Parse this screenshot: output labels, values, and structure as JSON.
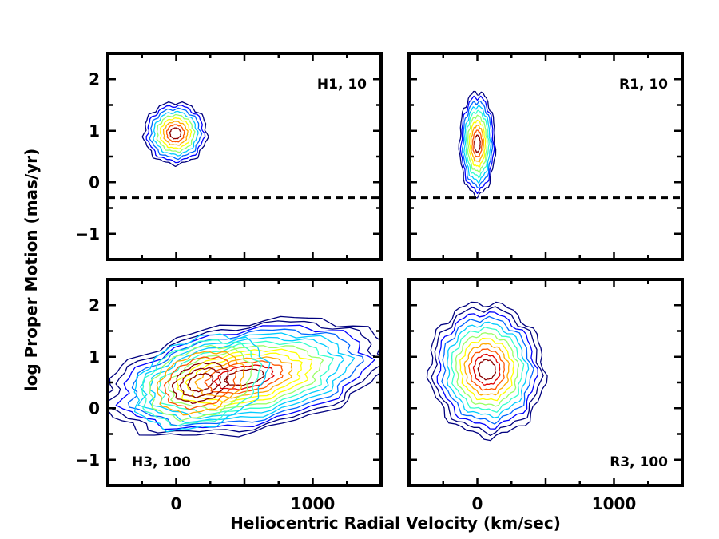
{
  "chart_data": {
    "type": "contour",
    "xlabel": "Heliocentric Radial Velocity (km/sec)",
    "ylabel": "log Proper Motion (mas/yr)",
    "xlim": [
      -500,
      1500
    ],
    "ylim": [
      -1.5,
      2.5
    ],
    "x_ticks": [
      0,
      1000
    ],
    "y_ticks": [
      2,
      1,
      0,
      -1
    ],
    "x_tick_labels": [
      "0",
      "1000"
    ],
    "y_tick_labels": [
      "2",
      "1",
      "0",
      "−1"
    ],
    "reference_line_y": -0.3,
    "panels": [
      {
        "id": "H1",
        "label": "H1, 10",
        "row": 0,
        "col": 0,
        "label_pos": "top-right",
        "dashed_line": true,
        "blobs": [
          {
            "cx": -5,
            "cy": 0.95,
            "sx": 230,
            "sy": 0.6,
            "rot": 0,
            "levels": 9
          }
        ]
      },
      {
        "id": "R1",
        "label": "R1, 10",
        "row": 0,
        "col": 1,
        "label_pos": "top-right",
        "dashed_line": true,
        "blobs": [
          {
            "cx": 0,
            "cy": 0.75,
            "sx": 130,
            "sy": 1.0,
            "rot": 0,
            "levels": 10
          }
        ]
      },
      {
        "id": "H3",
        "label": "H3, 100",
        "row": 1,
        "col": 0,
        "label_pos": "bottom-left",
        "dashed_line": false,
        "blobs": [
          {
            "cx": 500,
            "cy": 0.6,
            "sx": 1050,
            "sy": 1.05,
            "rot": -10,
            "levels": 14
          },
          {
            "cx": 180,
            "cy": 0.5,
            "sx": 500,
            "sy": 0.85,
            "rot": -20,
            "levels": 8
          }
        ]
      },
      {
        "id": "R3",
        "label": "R3, 100",
        "row": 1,
        "col": 1,
        "label_pos": "bottom-right",
        "dashed_line": false,
        "blobs": [
          {
            "cx": 70,
            "cy": 0.75,
            "sx": 420,
            "sy": 1.3,
            "rot": -8,
            "levels": 12
          }
        ]
      }
    ]
  },
  "colors": {
    "contour_scale": [
      "#00007f",
      "#0000ff",
      "#0066ff",
      "#00ccff",
      "#33ffcc",
      "#99ff66",
      "#ffff00",
      "#ffaa00",
      "#ff5500",
      "#e00000",
      "#8b0000"
    ],
    "axis": "#000000",
    "dashed_line": "#000000"
  }
}
